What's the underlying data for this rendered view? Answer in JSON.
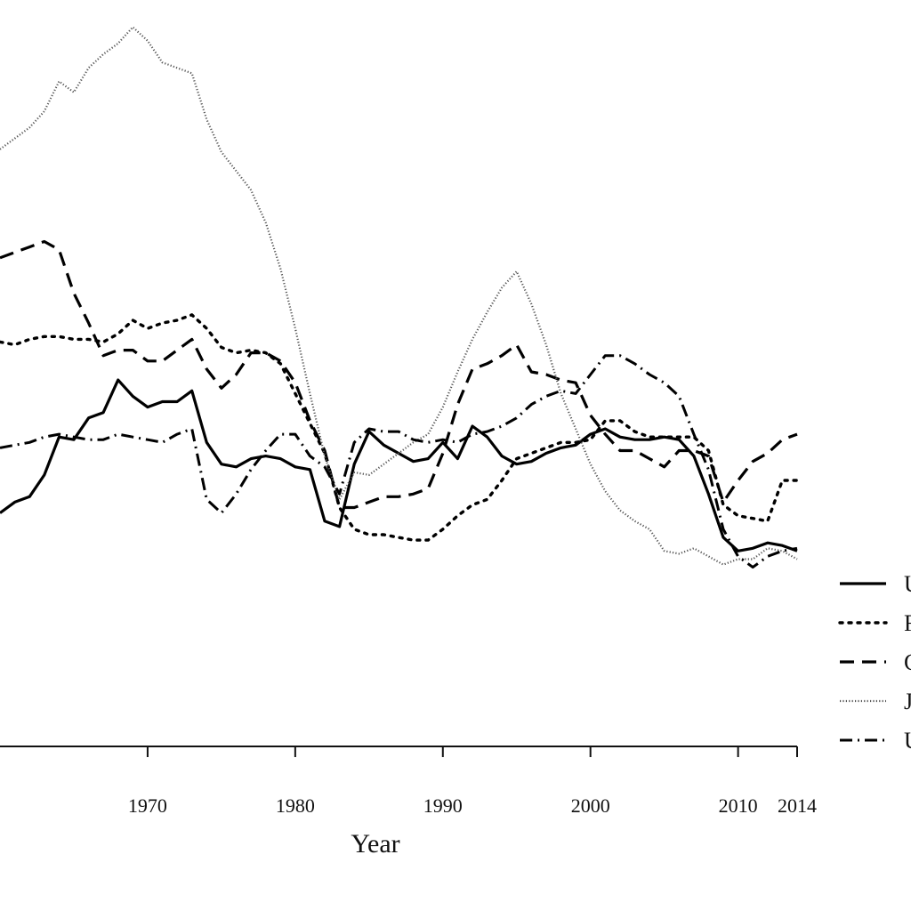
{
  "chart_data": {
    "type": "line",
    "title": "",
    "xlabel": "Year",
    "ylabel": "",
    "xlim": [
      1960,
      2014
    ],
    "ylim": [
      -1.1,
      1.65
    ],
    "grid": false,
    "legend_position": "right",
    "x_ticks": [
      1970,
      1980,
      1990,
      2000,
      2010,
      2014
    ],
    "x_tick_labels": [
      "1970",
      "1980",
      "1990",
      "2000",
      "2010",
      "2014"
    ],
    "years": [
      1960,
      1961,
      1962,
      1963,
      1964,
      1965,
      1966,
      1967,
      1968,
      1969,
      1970,
      1971,
      1972,
      1973,
      1974,
      1975,
      1976,
      1977,
      1978,
      1979,
      1980,
      1981,
      1982,
      1983,
      1984,
      1985,
      1986,
      1987,
      1988,
      1989,
      1990,
      1991,
      1992,
      1993,
      1994,
      1995,
      1996,
      1997,
      1998,
      1999,
      2000,
      2001,
      2002,
      2003,
      2004,
      2005,
      2006,
      2007,
      2008,
      2009,
      2010,
      2011,
      2012,
      2013,
      2014
    ],
    "series": [
      {
        "name": "U",
        "style": "solid",
        "values": [
          -0.24,
          -0.2,
          -0.18,
          -0.1,
          0.04,
          0.03,
          0.11,
          0.13,
          0.25,
          0.19,
          0.15,
          0.17,
          0.17,
          0.21,
          0.02,
          -0.06,
          -0.07,
          -0.04,
          -0.03,
          -0.04,
          -0.07,
          -0.08,
          -0.27,
          -0.29,
          -0.06,
          0.06,
          0.01,
          -0.02,
          -0.05,
          -0.04,
          0.02,
          -0.04,
          0.08,
          0.04,
          -0.03,
          -0.06,
          -0.05,
          -0.02,
          0.0,
          0.01,
          0.05,
          0.07,
          0.04,
          0.03,
          0.03,
          0.04,
          0.03,
          -0.03,
          -0.17,
          -0.33,
          -0.38,
          -0.37,
          -0.35,
          -0.36,
          -0.38
        ]
      },
      {
        "name": "F",
        "style": "dotted",
        "values": [
          0.39,
          0.38,
          0.4,
          0.41,
          0.41,
          0.4,
          0.4,
          0.39,
          0.42,
          0.47,
          0.44,
          0.46,
          0.47,
          0.49,
          0.44,
          0.37,
          0.35,
          0.36,
          0.35,
          0.31,
          0.2,
          0.09,
          -0.02,
          -0.22,
          -0.3,
          -0.32,
          -0.32,
          -0.33,
          -0.34,
          -0.34,
          -0.3,
          -0.25,
          -0.21,
          -0.19,
          -0.12,
          -0.04,
          -0.02,
          0.0,
          0.02,
          0.02,
          0.03,
          0.1,
          0.1,
          0.06,
          0.04,
          0.04,
          0.04,
          0.04,
          -0.01,
          -0.21,
          -0.25,
          -0.26,
          -0.27,
          -0.12,
          -0.12
        ]
      },
      {
        "name": "G",
        "style": "dashed",
        "values": [
          0.7,
          0.72,
          0.74,
          0.76,
          0.73,
          0.57,
          0.46,
          0.34,
          0.36,
          0.36,
          0.32,
          0.32,
          0.36,
          0.4,
          0.29,
          0.22,
          0.27,
          0.35,
          0.35,
          0.32,
          0.24,
          0.1,
          -0.01,
          -0.22,
          -0.22,
          -0.2,
          -0.18,
          -0.18,
          -0.17,
          -0.15,
          -0.02,
          0.16,
          0.29,
          0.31,
          0.34,
          0.38,
          0.28,
          0.27,
          0.25,
          0.24,
          0.12,
          0.05,
          -0.01,
          -0.01,
          -0.04,
          -0.07,
          -0.01,
          -0.01,
          -0.03,
          -0.2,
          -0.12,
          -0.05,
          -0.02,
          0.03,
          0.05
        ]
      },
      {
        "name": "J",
        "style": "fine-dotted",
        "values": [
          1.1,
          1.14,
          1.18,
          1.24,
          1.35,
          1.31,
          1.4,
          1.45,
          1.49,
          1.55,
          1.5,
          1.42,
          1.4,
          1.38,
          1.21,
          1.09,
          1.02,
          0.95,
          0.83,
          0.66,
          0.44,
          0.2,
          -0.03,
          -0.19,
          -0.09,
          -0.1,
          -0.06,
          -0.02,
          0.02,
          0.05,
          0.15,
          0.28,
          0.4,
          0.5,
          0.59,
          0.65,
          0.53,
          0.38,
          0.2,
          0.07,
          -0.06,
          -0.16,
          -0.23,
          -0.27,
          -0.3,
          -0.38,
          -0.39,
          -0.37,
          -0.4,
          -0.43,
          -0.41,
          -0.41,
          -0.37,
          -0.38,
          -0.41
        ]
      },
      {
        "name": "U",
        "style": "dash-dot",
        "values": [
          0.0,
          0.01,
          0.02,
          0.04,
          0.05,
          0.04,
          0.03,
          0.03,
          0.05,
          0.04,
          0.03,
          0.02,
          0.05,
          0.07,
          -0.19,
          -0.24,
          -0.17,
          -0.08,
          -0.01,
          0.05,
          0.05,
          -0.03,
          -0.07,
          -0.17,
          0.02,
          0.07,
          0.06,
          0.06,
          0.03,
          0.02,
          0.03,
          0.02,
          0.05,
          0.06,
          0.08,
          0.11,
          0.16,
          0.19,
          0.21,
          0.2,
          0.27,
          0.34,
          0.34,
          0.31,
          0.27,
          0.24,
          0.19,
          0.05,
          -0.08,
          -0.3,
          -0.4,
          -0.44,
          -0.4,
          -0.38,
          -0.37
        ]
      }
    ]
  }
}
